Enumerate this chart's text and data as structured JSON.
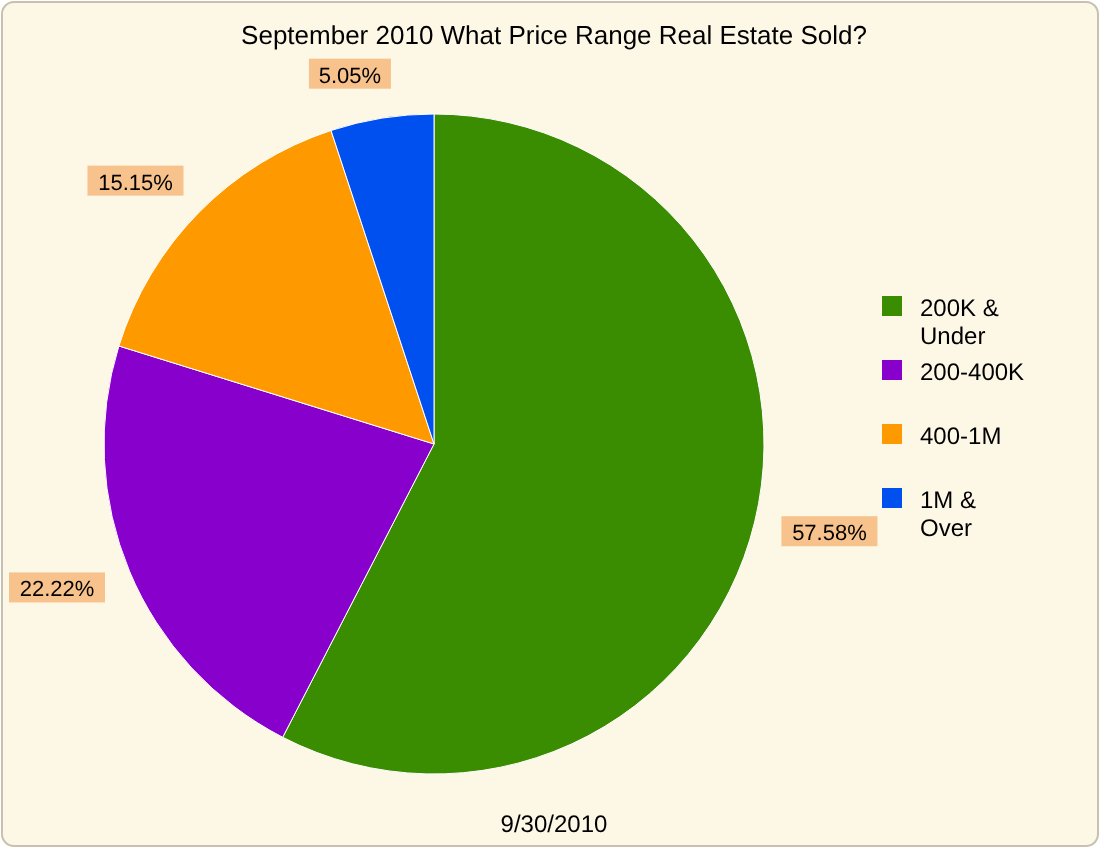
{
  "chart_data": {
    "type": "pie",
    "title": "September 2010 What Price Range Real Estate Sold?",
    "categories": [
      "200K & Under",
      "200-400K",
      "400-1M",
      "1M & Over"
    ],
    "values": [
      57.58,
      22.22,
      15.15,
      5.05
    ],
    "colors": [
      "#3a8c00",
      "#8800cc",
      "#ff9900",
      "#0050f0"
    ],
    "value_labels": [
      "57.58%",
      "22.22%",
      "15.15%",
      "5.05%"
    ],
    "legend": "right",
    "annotations": [
      "9/30/2010"
    ]
  }
}
